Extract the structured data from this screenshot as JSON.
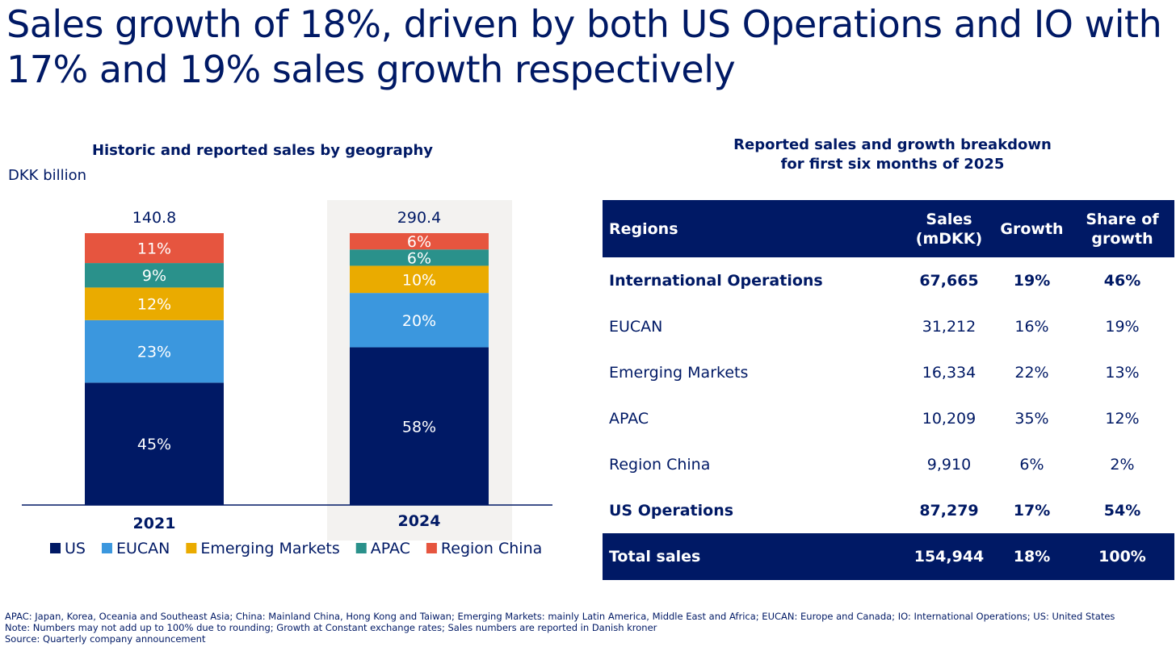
{
  "page": {
    "title": "Sales growth of 18%, driven by both US Operations and IO with 17% and 19% sales growth respectively"
  },
  "chart_data": {
    "type": "bar",
    "stacked": true,
    "title": "Historic and reported sales by geography",
    "ylabel": "DKK billion",
    "xlabel": "",
    "categories": [
      "2021",
      "2024"
    ],
    "totals": [
      "140.8",
      "290.4"
    ],
    "highlighted_category": "2024",
    "series": [
      {
        "name": "US",
        "color": "#001965",
        "values": [
          45,
          58
        ]
      },
      {
        "name": "EUCAN",
        "color": "#3B97DE",
        "values": [
          23,
          20
        ]
      },
      {
        "name": "Emerging Markets",
        "color": "#EAAB00",
        "values": [
          12,
          10
        ]
      },
      {
        "name": "APAC",
        "color": "#2A918B",
        "values": [
          9,
          6
        ]
      },
      {
        "name": "Region China",
        "color": "#E6553F",
        "values": [
          11,
          6
        ]
      }
    ],
    "value_suffix": "%",
    "legend_position": "bottom",
    "grid": false
  },
  "table": {
    "title_line1": "Reported sales and growth breakdown",
    "title_line2": "for first six months of 2025",
    "headers": {
      "region": "Regions",
      "sales_line1": "Sales",
      "sales_line2": "(mDKK)",
      "growth": "Growth",
      "share_line1": "Share of",
      "share_line2": "growth"
    },
    "rows": [
      {
        "region": "International Operations",
        "sales": "67,665",
        "growth": "19%",
        "share": "46%",
        "bold": true
      },
      {
        "region": "EUCAN",
        "sales": "31,212",
        "growth": "16%",
        "share": "19%",
        "bold": false
      },
      {
        "region": "Emerging Markets",
        "sales": "16,334",
        "growth": "22%",
        "share": "13%",
        "bold": false
      },
      {
        "region": "APAC",
        "sales": "10,209",
        "growth": "35%",
        "share": "12%",
        "bold": false
      },
      {
        "region": "Region China",
        "sales": "9,910",
        "growth": "6%",
        "share": "2%",
        "bold": false
      },
      {
        "region": "US Operations",
        "sales": "87,279",
        "growth": "17%",
        "share": "54%",
        "bold": true
      }
    ],
    "total": {
      "region": "Total sales",
      "sales": "154,944",
      "growth": "18%",
      "share": "100%"
    }
  },
  "footnotes": {
    "abbreviations": "APAC: Japan, Korea, Oceania and Southeast Asia; China: Mainland China, Hong Kong and Taiwan; Emerging Markets: mainly Latin America, Middle East and Africa; EUCAN: Europe and Canada; IO: International Operations; US: United States",
    "note": "Note: Numbers may not add up to 100% due to rounding; Growth at Constant exchange rates; Sales numbers are reported in Danish kroner",
    "source": "Source: Quarterly company announcement"
  },
  "colors": {
    "brand_navy": "#001965",
    "highlight_bg": "#F3F2F0"
  }
}
